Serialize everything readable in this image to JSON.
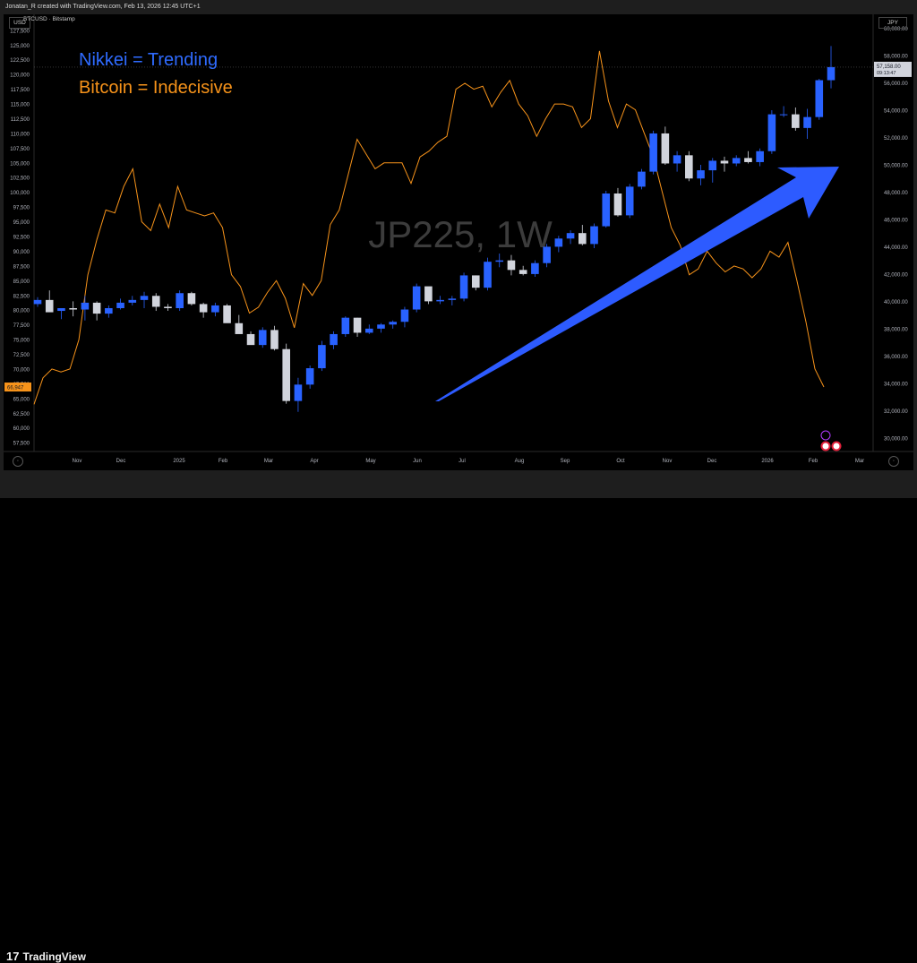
{
  "header": {
    "created_by": "Jonatan_R created with TradingView.com, Feb 13, 2026 12:45 UTC+1",
    "symbol": "BTCUSD · Bitstamp",
    "left_currency": "USD",
    "right_currency": "JPY"
  },
  "annotations": {
    "line1": "Nikkei = Trending",
    "line2": "Bitcoin = Indecisive",
    "watermark": "JP225, 1W"
  },
  "footer": {
    "brand": "TradingView"
  },
  "colors": {
    "blue": "#2962ff",
    "white_candle": "#d1d4dc",
    "orange": "#f7931a",
    "arrow": "#2d5bff"
  },
  "chart_data": {
    "type": "line",
    "x_labels": [
      "Nov",
      "Dec",
      "2025",
      "Feb",
      "Mar",
      "Apr",
      "May",
      "Jun",
      "Jul",
      "Aug",
      "Sep",
      "Oct",
      "Nov",
      "Dec",
      "2026",
      "Feb",
      "Mar"
    ],
    "left_axis": {
      "currency": "USD",
      "ticks": [
        "57,500",
        "60,000",
        "62,500",
        "65,000",
        "67,500",
        "70,000",
        "72,500",
        "75,000",
        "77,500",
        "80,000",
        "82,500",
        "85,000",
        "87,500",
        "90,000",
        "92,500",
        "95,000",
        "97,500",
        "100,000",
        "102,500",
        "105,000",
        "107,500",
        "110,000",
        "112,500",
        "115,000",
        "117,500",
        "120,000",
        "122,500",
        "125,000",
        "127,500"
      ],
      "last_price_label": "66,947",
      "range": [
        56000,
        129000
      ]
    },
    "right_axis": {
      "currency": "JPY",
      "ticks": [
        "30,000.00",
        "32,000.00",
        "34,000.00",
        "36,000.00",
        "38,000.00",
        "40,000.00",
        "42,000.00",
        "44,000.00",
        "46,000.00",
        "48,000.00",
        "50,000.00",
        "52,000.00",
        "54,000.00",
        "56,000.00",
        "58,000.00",
        "60,000.00"
      ],
      "last_price_label": "57,158.00",
      "countdown_label": "09:13:47",
      "range": [
        29000,
        60500
      ]
    },
    "series": [
      {
        "name": "JP225, 1W",
        "kind": "candlestick",
        "axis": "right",
        "ohlc": [
          [
            39800,
            40300,
            39600,
            40100
          ],
          [
            40100,
            40800,
            39300,
            39200
          ],
          [
            39300,
            39500,
            38700,
            39500
          ],
          [
            39500,
            40000,
            38900,
            39400
          ],
          [
            39400,
            40400,
            38600,
            39900
          ],
          [
            39900,
            40000,
            38600,
            39100
          ],
          [
            39100,
            39700,
            38800,
            39500
          ],
          [
            39500,
            40200,
            39400,
            39900
          ],
          [
            39900,
            40400,
            39700,
            40100
          ],
          [
            40100,
            40700,
            39500,
            40400
          ],
          [
            40400,
            40600,
            39300,
            39600
          ],
          [
            39600,
            39800,
            39300,
            39500
          ],
          [
            39500,
            40800,
            39300,
            40600
          ],
          [
            40600,
            40700,
            39700,
            39800
          ],
          [
            39800,
            39900,
            38800,
            39200
          ],
          [
            39200,
            39900,
            38900,
            39700
          ],
          [
            39700,
            39800,
            38500,
            38400
          ],
          [
            38400,
            39000,
            37900,
            37600
          ],
          [
            37600,
            37800,
            36900,
            36800
          ],
          [
            36800,
            38100,
            36600,
            37900
          ],
          [
            37900,
            38200,
            36400,
            36500
          ],
          [
            36500,
            36900,
            32500,
            32700
          ],
          [
            32700,
            34400,
            31900,
            33900
          ],
          [
            33900,
            35300,
            33600,
            35100
          ],
          [
            35100,
            37100,
            34900,
            36800
          ],
          [
            36800,
            37800,
            36500,
            37600
          ],
          [
            37600,
            38900,
            37400,
            38800
          ],
          [
            38800,
            38800,
            37400,
            37700
          ],
          [
            37700,
            38300,
            37600,
            38000
          ],
          [
            38000,
            38400,
            37700,
            38300
          ],
          [
            38300,
            38600,
            38000,
            38500
          ],
          [
            38500,
            39600,
            38100,
            39400
          ],
          [
            39400,
            41300,
            39200,
            41100
          ],
          [
            41100,
            40800,
            39800,
            40000
          ],
          [
            40000,
            40400,
            39800,
            40100
          ],
          [
            40100,
            40400,
            39700,
            40200
          ],
          [
            40200,
            42100,
            40000,
            41900
          ],
          [
            41900,
            41900,
            40800,
            41000
          ],
          [
            41000,
            43200,
            40800,
            42900
          ],
          [
            42900,
            43500,
            42500,
            43000
          ],
          [
            43000,
            43400,
            41900,
            42300
          ],
          [
            42300,
            42600,
            41900,
            42000
          ],
          [
            42000,
            43000,
            41800,
            42800
          ],
          [
            42800,
            44200,
            42500,
            44000
          ],
          [
            44000,
            44800,
            43600,
            44600
          ],
          [
            44600,
            45200,
            44200,
            45000
          ],
          [
            45000,
            45600,
            44100,
            44200
          ],
          [
            44200,
            45700,
            43900,
            45500
          ],
          [
            45500,
            48100,
            45400,
            47900
          ],
          [
            47900,
            48300,
            46200,
            46300
          ],
          [
            46300,
            48600,
            46100,
            48400
          ],
          [
            48400,
            49700,
            48200,
            49500
          ],
          [
            49500,
            52500,
            49300,
            52300
          ],
          [
            52300,
            52800,
            50000,
            50100
          ],
          [
            50100,
            51000,
            49500,
            50700
          ],
          [
            50700,
            51000,
            48800,
            49000
          ],
          [
            49000,
            50000,
            48500,
            49600
          ],
          [
            49600,
            50500,
            48700,
            50300
          ],
          [
            50300,
            50600,
            49500,
            50100
          ],
          [
            50100,
            50700,
            49900,
            50500
          ],
          [
            50500,
            51000,
            50100,
            50200
          ],
          [
            50200,
            51200,
            49900,
            51000
          ],
          [
            51000,
            54000,
            50800,
            53700
          ],
          [
            53700,
            54300,
            53500,
            53700
          ],
          [
            53700,
            54200,
            52500,
            52700
          ],
          [
            52700,
            54100,
            51900,
            53500
          ],
          [
            53500,
            56300,
            53300,
            56200
          ],
          [
            56200,
            58700,
            55600,
            57158
          ]
        ]
      },
      {
        "name": "BTCUSD",
        "kind": "line",
        "axis": "left",
        "values": [
          64000,
          68500,
          70000,
          69500,
          70000,
          75000,
          86000,
          92000,
          97000,
          96500,
          101000,
          104000,
          95000,
          93500,
          98000,
          94000,
          101000,
          97000,
          96500,
          96000,
          96500,
          94000,
          86000,
          84000,
          79500,
          80500,
          83000,
          85000,
          82000,
          77000,
          84500,
          82500,
          85000,
          94500,
          97000,
          103000,
          109000,
          106500,
          104000,
          105000,
          105000,
          105000,
          101500,
          106000,
          107000,
          108500,
          109500,
          117500,
          118500,
          117500,
          118000,
          114500,
          117000,
          119000,
          115000,
          113000,
          109500,
          112500,
          115000,
          115000,
          114500,
          111000,
          112500,
          124000,
          115500,
          111000,
          115000,
          114000,
          110000,
          106000,
          100000,
          94000,
          91000,
          86000,
          87000,
          90000,
          88000,
          86500,
          87500,
          87000,
          85500,
          87000,
          90000,
          89000,
          91500,
          85000,
          78000,
          70000,
          66947
        ]
      }
    ]
  }
}
